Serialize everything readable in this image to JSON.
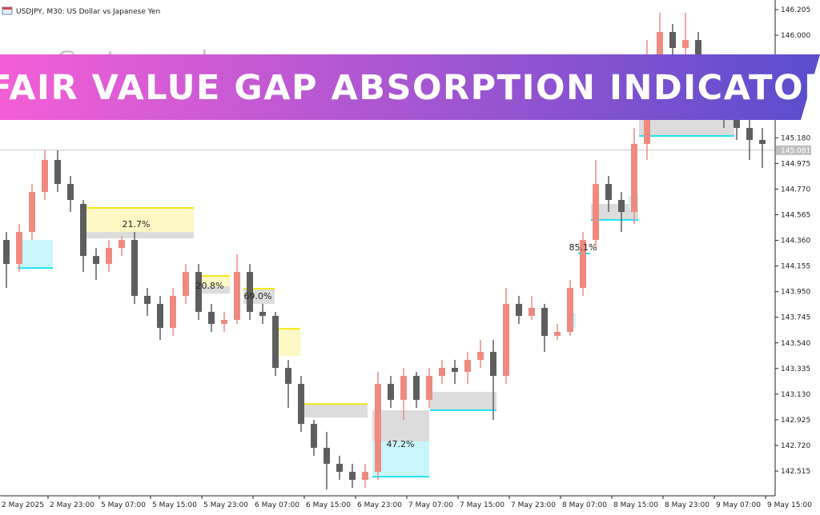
{
  "header": "USDJPY, M30:  US Dollar vs Japanese Yen",
  "banner": "FAIR VALUE GAP ABSORPTION INDICATOR",
  "watermark": "Custom color",
  "chart_data": {
    "type": "candlestick",
    "up_color": "#ef8a80",
    "down_color": "#5e5e5e",
    "ylim": [
      142.317,
      146.282
    ],
    "yticks": [
      146.205,
      {
        "value": 146,
        "label": "146.000"
      },
      {
        "value": 145.18,
        "label": "145.180"
      },
      144.975,
      {
        "value": 144.77,
        "label": "144.770"
      },
      144.565,
      {
        "value": 144.36,
        "label": "144.360"
      },
      144.155,
      {
        "value": 143.95,
        "label": "143.950"
      },
      143.745,
      {
        "value": 143.54,
        "label": "143.540"
      },
      143.335,
      {
        "value": 143.13,
        "label": "143.130"
      },
      142.925,
      {
        "value": 142.72,
        "label": "142.720"
      },
      142.515
    ],
    "x_labels": [
      "2 May 2025",
      "2 May 23:00",
      "5 May 07:00",
      "5 May 15:00",
      "5 May 23:00",
      "6 May 07:00",
      "6 May 15:00",
      "6 May 23:00",
      "7 May 07:00",
      "7 May 15:00",
      "7 May 23:00",
      "8 May 07:00",
      "8 May 15:00",
      "8 May 23:00",
      "9 May 07:00",
      "9 May 15:00"
    ],
    "current_price": {
      "value": 145.081,
      "label": "145.081"
    },
    "candles": [
      [
        144.363,
        144.427,
        143.98,
        144.171
      ],
      [
        144.171,
        144.491,
        144.107,
        144.427
      ],
      [
        144.427,
        144.811,
        144.363,
        144.747
      ],
      [
        144.747,
        145.08,
        144.683,
        145.003
      ],
      [
        145.003,
        145.08,
        144.747,
        144.811
      ],
      [
        144.811,
        144.875,
        144.587,
        144.683
      ],
      [
        144.651,
        144.683,
        144.107,
        144.235
      ],
      [
        144.235,
        144.299,
        144.044,
        144.171
      ],
      [
        144.171,
        144.363,
        144.107,
        144.299
      ],
      [
        144.299,
        144.395,
        144.235,
        144.363
      ],
      [
        144.363,
        144.427,
        143.852,
        143.916
      ],
      [
        143.916,
        143.98,
        143.756,
        143.852
      ],
      [
        143.852,
        143.916,
        143.564,
        143.66
      ],
      [
        143.66,
        143.98,
        143.596,
        143.916
      ],
      [
        143.916,
        144.171,
        143.852,
        144.107
      ],
      [
        144.107,
        144.171,
        143.724,
        143.788
      ],
      [
        143.788,
        143.852,
        143.628,
        143.692
      ],
      [
        143.692,
        143.788,
        143.628,
        143.724
      ],
      [
        143.724,
        144.248,
        143.692,
        144.107
      ],
      [
        144.107,
        144.171,
        143.724,
        143.788
      ],
      [
        143.788,
        143.852,
        143.692,
        143.756
      ],
      [
        143.756,
        143.788,
        143.276,
        143.34
      ],
      [
        143.34,
        143.404,
        143.02,
        143.212
      ],
      [
        143.212,
        143.276,
        142.828,
        142.892
      ],
      [
        142.892,
        142.924,
        142.637,
        142.701
      ],
      [
        142.701,
        142.828,
        142.368,
        142.573
      ],
      [
        142.573,
        142.637,
        142.445,
        142.509
      ],
      [
        142.509,
        142.573,
        142.381,
        142.445
      ],
      [
        142.445,
        142.573,
        142.381,
        142.509
      ],
      [
        142.509,
        143.308,
        142.445,
        143.212
      ],
      [
        143.212,
        143.276,
        143.02,
        143.084
      ],
      [
        143.084,
        143.34,
        142.924,
        143.276
      ],
      [
        143.276,
        143.308,
        143.02,
        143.084
      ],
      [
        143.084,
        143.34,
        143.02,
        143.276
      ],
      [
        143.276,
        143.404,
        143.212,
        143.34
      ],
      [
        143.34,
        143.404,
        143.212,
        143.308
      ],
      [
        143.308,
        143.468,
        143.212,
        143.404
      ],
      [
        143.404,
        143.564,
        143.34,
        143.468
      ],
      [
        143.468,
        143.564,
        142.924,
        143.276
      ],
      [
        143.276,
        143.98,
        143.212,
        143.852
      ],
      [
        143.852,
        143.916,
        143.692,
        143.756
      ],
      [
        143.756,
        143.916,
        143.724,
        143.82
      ],
      [
        143.82,
        143.852,
        143.468,
        143.596
      ],
      [
        143.596,
        143.692,
        143.564,
        143.628
      ],
      [
        143.628,
        144.044,
        143.596,
        143.98
      ],
      [
        143.98,
        144.427,
        143.916,
        144.363
      ],
      [
        144.363,
        145.003,
        144.299,
        144.811
      ],
      [
        144.811,
        144.875,
        144.587,
        144.683
      ],
      [
        144.683,
        144.747,
        144.427,
        144.587
      ],
      [
        144.587,
        145.259,
        144.491,
        145.131
      ],
      [
        145.131,
        145.962,
        145.003,
        145.834
      ],
      [
        145.834,
        146.179,
        145.706,
        146.026
      ],
      [
        146.026,
        146.09,
        145.834,
        145.898
      ],
      [
        145.898,
        146.179,
        145.834,
        145.962
      ],
      [
        145.962,
        146.026,
        145.514,
        145.706
      ],
      [
        145.706,
        145.834,
        145.323,
        145.514
      ],
      [
        145.514,
        145.706,
        145.259,
        145.323
      ],
      [
        145.323,
        145.514,
        145.163,
        145.259
      ],
      [
        145.259,
        145.323,
        145.003,
        145.163
      ],
      [
        145.163,
        145.259,
        144.939,
        145.131
      ]
    ],
    "zones": [
      {
        "top": 144.363,
        "bottom": 144.139,
        "fill": "#c9f6fb",
        "line": "bottom",
        "line_color": "#22e4f4"
      },
      {
        "top": 144.619,
        "bottom": 144.427,
        "fill": "#fdf8c4",
        "line": "top",
        "line_color": "#f4e81c"
      },
      {
        "top": 144.427,
        "bottom": 144.376,
        "fill": "#dcdcdc"
      },
      {
        "top": 144.076,
        "bottom": 143.992,
        "fill": "#fdf8c4",
        "line": "top",
        "line_color": "#f4e81c"
      },
      {
        "top": 143.992,
        "bottom": 143.935,
        "fill": "#dcdcdc"
      },
      {
        "top": 143.973,
        "bottom": 143.852,
        "fill": "#dcdcdc",
        "line": "top",
        "line_color": "#f4e81c"
      },
      {
        "top": 143.653,
        "bottom": 143.436,
        "fill": "#fdf8c4",
        "line": "top",
        "line_color": "#f4e81c"
      },
      {
        "top": 143.052,
        "bottom": 142.944,
        "fill": "#dcdcdc",
        "line": "top",
        "line_color": "#f4e81c"
      },
      {
        "top": 143.001,
        "bottom": 142.752,
        "fill": "#dcdcdc"
      },
      {
        "top": 142.752,
        "bottom": 142.47,
        "fill": "#c9f6fb",
        "line": "bottom",
        "line_color": "#22e4f4"
      },
      {
        "top": 143.148,
        "bottom": 143.001,
        "fill": "#dcdcdc",
        "line": "bottom",
        "line_color": "#22e4f4"
      },
      {
        "top": 143.775,
        "bottom": 143.66,
        "fill": "#c9f6fb"
      },
      {
        "top": 144.255,
        "bottom": 144.255,
        "fill": "#c9f6fb",
        "line": "top",
        "line_color": "#22e4f4"
      },
      {
        "top": 144.651,
        "bottom": 144.523,
        "fill": "#dcdcdc",
        "line": "bottom",
        "line_color": "#22e4f4"
      },
      {
        "top": 144.715,
        "bottom": 144.606,
        "fill": "#c9f6fb"
      },
      {
        "top": 145.323,
        "bottom": 145.195,
        "fill": "#dcdcdc",
        "line": "bottom",
        "line_color": "#22e4f4"
      }
    ],
    "gap_labels": [
      "21.7%",
      "20.8%",
      "69.0%",
      "47.2%",
      "85.1%"
    ]
  }
}
